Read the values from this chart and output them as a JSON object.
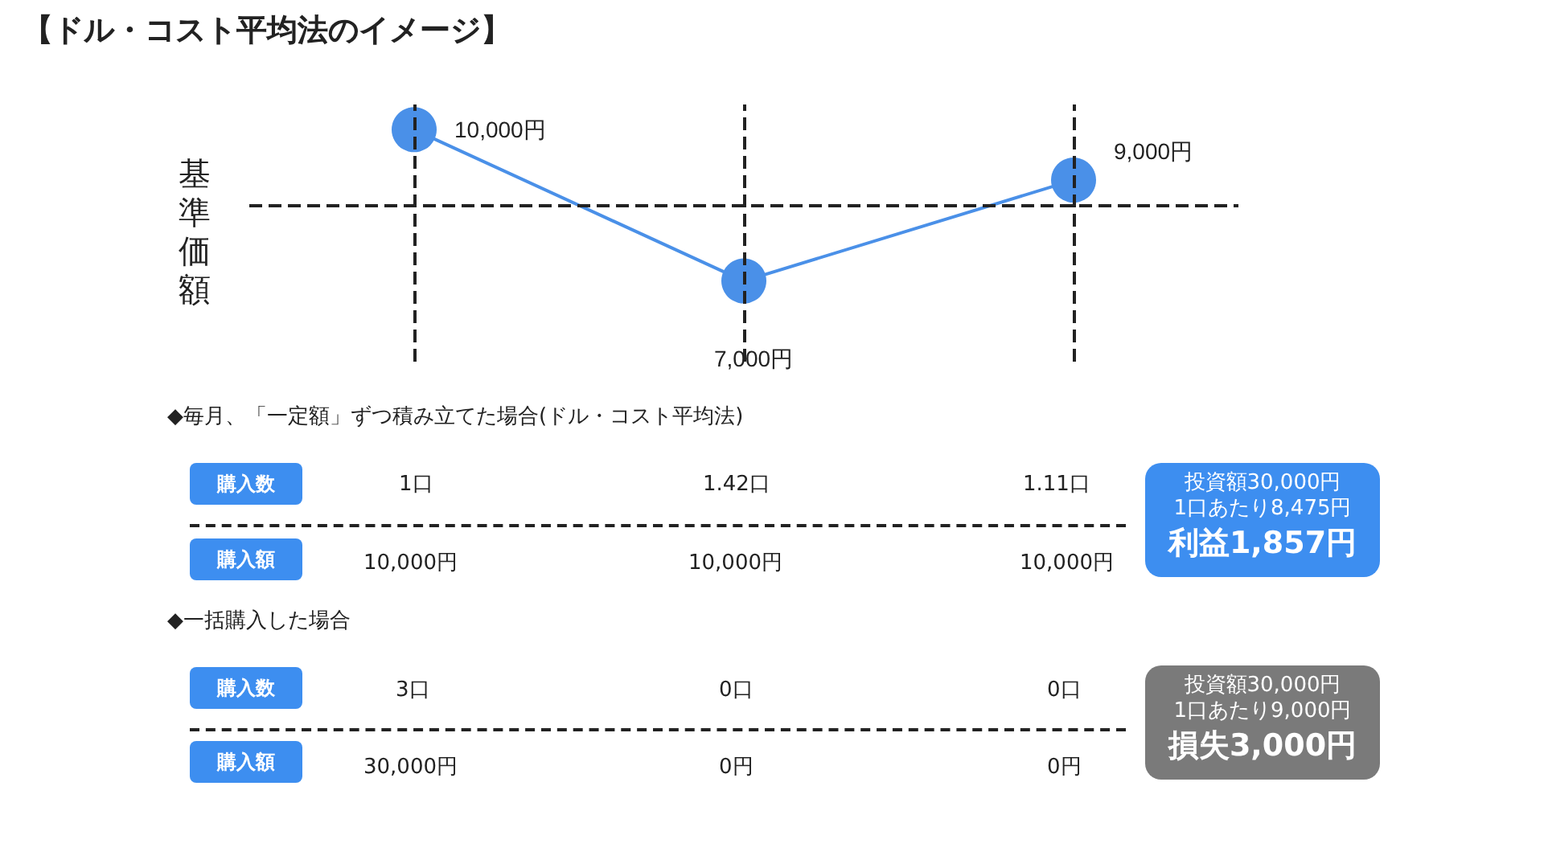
{
  "chart_data": {
    "type": "line",
    "title": "【ドル・コスト平均法のイメージ】",
    "ylabel": "基準価額",
    "categories": [
      null,
      null,
      null
    ],
    "series": [
      {
        "color": "#4a90e8",
        "values": [
          10000,
          7000,
          9000
        ],
        "value_labels": [
          "10,000円",
          "7,000円",
          "9,000円"
        ]
      }
    ],
    "ylim": [
      5400,
      10500
    ],
    "tick_labels": false,
    "grid": "x",
    "marker": "circle",
    "line_style": "solid",
    "ref_lines": [
      {
        "axis": "y",
        "value": 8500
      }
    ],
    "annotations": [
      "◆毎月、「一定額」ずつ積み立てた場合(ドル・コスト平均法)",
      "購入数",
      "1口",
      "1.42口",
      "1.11口",
      "購入額",
      "10,000円",
      "10,000円",
      "10,000円",
      "投資額30,000円",
      "1口あたり8,475円",
      "利益1,857円",
      "◆一括購入した場合",
      "購入数",
      "3口",
      "0口",
      "0口",
      "購入額",
      "30,000円",
      "0円",
      "0円",
      "投資額30,000円",
      "1口あたり9,000円",
      "損失3,000円"
    ]
  }
}
